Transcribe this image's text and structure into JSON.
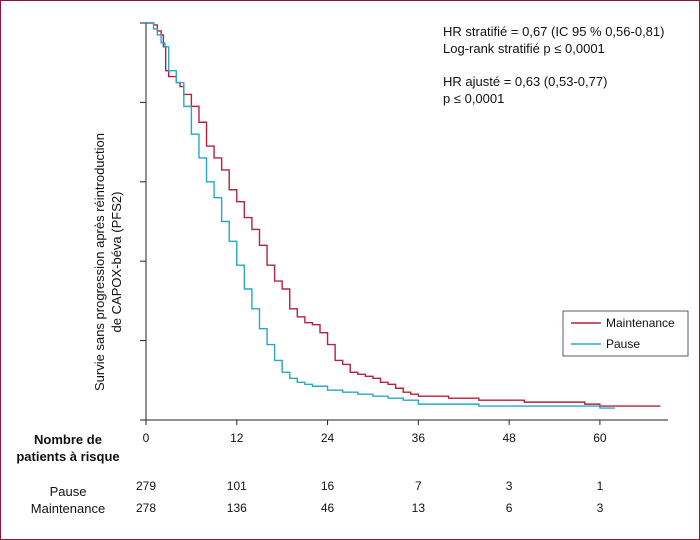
{
  "colors": {
    "frame": "#8a1538",
    "maintenance": "#b5213f",
    "pause": "#27a7c9",
    "axis": "#222222"
  },
  "chart_data": {
    "type": "line",
    "xlabel": "",
    "ylabel": [
      "Survie sans progression après réintroduction",
      "de CAPOX-béva (PFS2)"
    ],
    "xlim": [
      0,
      69
    ],
    "ylim": [
      0,
      1
    ],
    "x_ticks": [
      0,
      12,
      24,
      36,
      48,
      60
    ],
    "y_ticks": [
      0,
      0.2,
      0.4,
      0.6,
      0.8,
      1.0
    ],
    "y_tick_labels_shown": false,
    "grid": false,
    "legend_position": "right",
    "annotations": [
      "HR stratifié = 0,67 (IC 95 % 0,56-0,81)",
      "Log-rank stratifié p ≤ 0,0001",
      "HR ajusté = 0,63 (0,53-0,77)",
      "p ≤ 0,0001"
    ],
    "series": [
      {
        "name": "Maintenance",
        "color": "#b5213f",
        "points": [
          [
            0,
            1.0
          ],
          [
            0.5,
            1.0
          ],
          [
            1,
            0.995
          ],
          [
            1.5,
            0.98
          ],
          [
            2,
            0.97
          ],
          [
            2.3,
            0.94
          ],
          [
            2.6,
            0.88
          ],
          [
            3,
            0.865
          ],
          [
            4,
            0.85
          ],
          [
            4.5,
            0.84
          ],
          [
            5,
            0.82
          ],
          [
            6,
            0.79
          ],
          [
            7,
            0.75
          ],
          [
            8,
            0.69
          ],
          [
            9,
            0.66
          ],
          [
            10,
            0.63
          ],
          [
            11,
            0.58
          ],
          [
            12,
            0.55
          ],
          [
            13,
            0.51
          ],
          [
            14,
            0.48
          ],
          [
            15,
            0.44
          ],
          [
            16,
            0.39
          ],
          [
            17,
            0.35
          ],
          [
            18,
            0.33
          ],
          [
            19,
            0.28
          ],
          [
            20,
            0.26
          ],
          [
            21,
            0.245
          ],
          [
            22,
            0.24
          ],
          [
            23,
            0.22
          ],
          [
            24,
            0.19
          ],
          [
            25,
            0.15
          ],
          [
            26,
            0.14
          ],
          [
            27,
            0.12
          ],
          [
            28,
            0.115
          ],
          [
            29,
            0.11
          ],
          [
            30,
            0.105
          ],
          [
            31,
            0.095
          ],
          [
            32,
            0.09
          ],
          [
            33,
            0.08
          ],
          [
            34,
            0.07
          ],
          [
            35,
            0.065
          ],
          [
            36,
            0.06
          ],
          [
            38,
            0.06
          ],
          [
            40,
            0.055
          ],
          [
            42,
            0.055
          ],
          [
            44,
            0.05
          ],
          [
            46,
            0.05
          ],
          [
            48,
            0.05
          ],
          [
            50,
            0.045
          ],
          [
            52,
            0.045
          ],
          [
            55,
            0.045
          ],
          [
            58,
            0.04
          ],
          [
            60,
            0.035
          ],
          [
            63,
            0.035
          ],
          [
            68,
            0.035
          ]
        ]
      },
      {
        "name": "Pause",
        "color": "#27a7c9",
        "points": [
          [
            0,
            1.0
          ],
          [
            0.5,
            1.0
          ],
          [
            1,
            0.985
          ],
          [
            1.5,
            0.97
          ],
          [
            2,
            0.95
          ],
          [
            2.5,
            0.94
          ],
          [
            3,
            0.88
          ],
          [
            4,
            0.85
          ],
          [
            5,
            0.79
          ],
          [
            6,
            0.72
          ],
          [
            7,
            0.66
          ],
          [
            8,
            0.6
          ],
          [
            9,
            0.56
          ],
          [
            10,
            0.5
          ],
          [
            11,
            0.45
          ],
          [
            12,
            0.39
          ],
          [
            13,
            0.33
          ],
          [
            14,
            0.28
          ],
          [
            15,
            0.23
          ],
          [
            16,
            0.19
          ],
          [
            17,
            0.15
          ],
          [
            18,
            0.12
          ],
          [
            19,
            0.105
          ],
          [
            20,
            0.095
          ],
          [
            21,
            0.09
          ],
          [
            22,
            0.085
          ],
          [
            24,
            0.075
          ],
          [
            26,
            0.07
          ],
          [
            28,
            0.065
          ],
          [
            30,
            0.06
          ],
          [
            32,
            0.055
          ],
          [
            34,
            0.05
          ],
          [
            36,
            0.04
          ],
          [
            40,
            0.04
          ],
          [
            44,
            0.035
          ],
          [
            48,
            0.035
          ],
          [
            52,
            0.035
          ],
          [
            56,
            0.035
          ],
          [
            60,
            0.03
          ],
          [
            62,
            0.03
          ]
        ]
      }
    ],
    "risk_table": {
      "header": [
        "Nombre de",
        "patients à risque"
      ],
      "groups": [
        {
          "name": "Pause",
          "counts": [
            279,
            101,
            16,
            7,
            3,
            1
          ]
        },
        {
          "name": "Maintenance",
          "counts": [
            278,
            136,
            46,
            13,
            6,
            3
          ]
        }
      ]
    }
  }
}
